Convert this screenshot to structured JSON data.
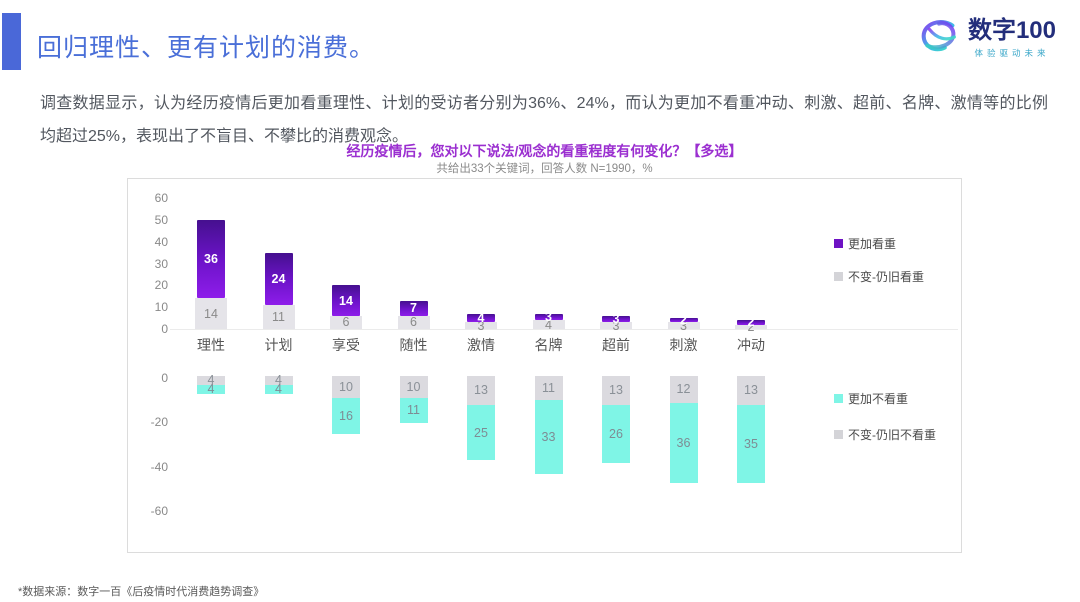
{
  "header": {
    "title": "回归理性、更有计划的消费。",
    "logo_name": "数字100",
    "logo_tagline": "体验驱动未来"
  },
  "intro_text": "调查数据显示，认为经历疫情后更加看重理性、计划的受访者分别为36%、24%，而认为更加不看重冲动、刺激、超前、名牌、激情等的比例均超过25%，表现出了不盲目、不攀比的消费观念。",
  "chart_data": {
    "type": "bar",
    "subtype": "diverging-stacked",
    "title": "经历疫情后，您对以下说法/观念的看重程度有何变化？【多选】",
    "subtitle": "共给出33个关键词，回答人数 N=1990，%",
    "categories": [
      "理性",
      "计划",
      "享受",
      "随性",
      "激情",
      "名牌",
      "超前",
      "刺激",
      "冲动"
    ],
    "series": [
      {
        "name": "更加看重",
        "direction": "up",
        "color": "#7a18d6",
        "values": [
          36,
          24,
          14,
          7,
          4,
          3,
          3,
          2,
          2
        ]
      },
      {
        "name": "不变-仍旧看重",
        "direction": "up",
        "color": "#e5e4e9",
        "values": [
          14,
          11,
          6,
          6,
          3,
          4,
          3,
          3,
          2
        ]
      },
      {
        "name": "更加不看重",
        "direction": "down",
        "color": "#7ff5e6",
        "values": [
          4,
          4,
          16,
          11,
          25,
          33,
          26,
          36,
          35
        ]
      },
      {
        "name": "不变-仍旧不看重",
        "direction": "down",
        "color": "#dbdadf",
        "values": [
          4,
          4,
          10,
          10,
          13,
          11,
          13,
          12,
          13
        ]
      }
    ],
    "y_axis_top_ticks": [
      60,
      50,
      40,
      30,
      20,
      10,
      0
    ],
    "y_axis_bottom_ticks": [
      0,
      -20,
      -40,
      -60
    ],
    "ylim_top": [
      0,
      60
    ],
    "ylim_bottom": [
      -60,
      0
    ],
    "grid": false,
    "legend_position": "right",
    "unit": "%"
  },
  "footer": {
    "source": "*数据来源：数字一百《后疫情时代消费趋势调查》"
  }
}
